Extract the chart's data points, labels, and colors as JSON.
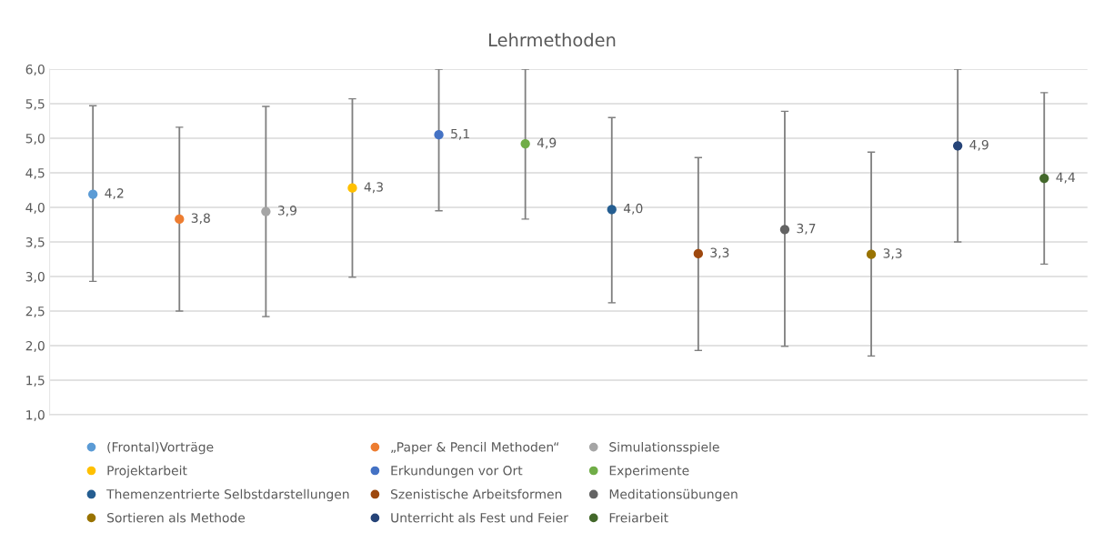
{
  "chart_data": {
    "type": "scatter",
    "title": "Lehrmethoden",
    "categories": [
      null,
      null,
      null,
      null,
      null,
      null,
      null,
      null,
      null,
      null,
      null,
      null
    ],
    "series": [
      {
        "name": "(Frontal)Vorträge",
        "color": "#5b9bd5",
        "values": [
          4.19,
          null,
          null,
          null,
          null,
          null,
          null,
          null,
          null,
          null,
          null,
          null
        ],
        "errors": [
          [
            2.93,
            5.47
          ],
          null,
          null,
          null,
          null,
          null,
          null,
          null,
          null,
          null,
          null,
          null
        ],
        "value_labels": [
          "4,2",
          null,
          null,
          null,
          null,
          null,
          null,
          null,
          null,
          null,
          null,
          null
        ]
      },
      {
        "name": "„Paper & Pencil Methoden“",
        "color": "#ed7d31",
        "values": [
          null,
          3.83,
          null,
          null,
          null,
          null,
          null,
          null,
          null,
          null,
          null,
          null
        ],
        "errors": [
          null,
          [
            2.5,
            5.16
          ],
          null,
          null,
          null,
          null,
          null,
          null,
          null,
          null,
          null,
          null
        ],
        "value_labels": [
          null,
          "3,8",
          null,
          null,
          null,
          null,
          null,
          null,
          null,
          null,
          null,
          null
        ]
      },
      {
        "name": "Simulationsspiele",
        "color": "#a5a5a5",
        "values": [
          null,
          null,
          3.94,
          null,
          null,
          null,
          null,
          null,
          null,
          null,
          null,
          null
        ],
        "errors": [
          null,
          null,
          [
            2.42,
            5.46
          ],
          null,
          null,
          null,
          null,
          null,
          null,
          null,
          null,
          null
        ],
        "value_labels": [
          null,
          null,
          "3,9",
          null,
          null,
          null,
          null,
          null,
          null,
          null,
          null,
          null
        ]
      },
      {
        "name": "Projektarbeit",
        "color": "#ffc000",
        "values": [
          null,
          null,
          null,
          4.28,
          null,
          null,
          null,
          null,
          null,
          null,
          null,
          null
        ],
        "errors": [
          null,
          null,
          null,
          [
            2.99,
            5.57
          ],
          null,
          null,
          null,
          null,
          null,
          null,
          null,
          null
        ],
        "value_labels": [
          null,
          null,
          null,
          "4,3",
          null,
          null,
          null,
          null,
          null,
          null,
          null,
          null
        ]
      },
      {
        "name": "Erkundungen vor Ort",
        "color": "#4472c4",
        "values": [
          null,
          null,
          null,
          null,
          5.05,
          null,
          null,
          null,
          null,
          null,
          null,
          null
        ],
        "errors": [
          null,
          null,
          null,
          null,
          [
            3.95,
            6.0
          ],
          null,
          null,
          null,
          null,
          null,
          null,
          null
        ],
        "value_labels": [
          null,
          null,
          null,
          null,
          "5,1",
          null,
          null,
          null,
          null,
          null,
          null,
          null
        ]
      },
      {
        "name": "Experimente",
        "color": "#70ad47",
        "values": [
          null,
          null,
          null,
          null,
          null,
          4.92,
          null,
          null,
          null,
          null,
          null,
          null
        ],
        "errors": [
          null,
          null,
          null,
          null,
          null,
          [
            3.83,
            6.0
          ],
          null,
          null,
          null,
          null,
          null,
          null
        ],
        "value_labels": [
          null,
          null,
          null,
          null,
          null,
          "4,9",
          null,
          null,
          null,
          null,
          null,
          null
        ]
      },
      {
        "name": "Themenzentrierte Selbstdarstellungen",
        "color": "#255e91",
        "values": [
          null,
          null,
          null,
          null,
          null,
          null,
          3.97,
          null,
          null,
          null,
          null,
          null
        ],
        "errors": [
          null,
          null,
          null,
          null,
          null,
          null,
          [
            2.62,
            5.3
          ],
          null,
          null,
          null,
          null,
          null
        ],
        "value_labels": [
          null,
          null,
          null,
          null,
          null,
          null,
          "4,0",
          null,
          null,
          null,
          null,
          null
        ]
      },
      {
        "name": "Szenistische Arbeitsformen",
        "color": "#9e480e",
        "values": [
          null,
          null,
          null,
          null,
          null,
          null,
          null,
          3.33,
          null,
          null,
          null,
          null
        ],
        "errors": [
          null,
          null,
          null,
          null,
          null,
          null,
          null,
          [
            1.93,
            4.72
          ],
          null,
          null,
          null,
          null
        ],
        "value_labels": [
          null,
          null,
          null,
          null,
          null,
          null,
          null,
          "3,3",
          null,
          null,
          null,
          null
        ]
      },
      {
        "name": "Meditationsübungen",
        "color": "#636363",
        "values": [
          null,
          null,
          null,
          null,
          null,
          null,
          null,
          null,
          3.68,
          null,
          null,
          null
        ],
        "errors": [
          null,
          null,
          null,
          null,
          null,
          null,
          null,
          null,
          [
            1.99,
            5.39
          ],
          null,
          null,
          null
        ],
        "value_labels": [
          null,
          null,
          null,
          null,
          null,
          null,
          null,
          null,
          "3,7",
          null,
          null,
          null
        ]
      },
      {
        "name": "Sortieren als Methode",
        "color": "#997300",
        "values": [
          null,
          null,
          null,
          null,
          null,
          null,
          null,
          null,
          null,
          3.32,
          null,
          null
        ],
        "errors": [
          null,
          null,
          null,
          null,
          null,
          null,
          null,
          null,
          null,
          [
            1.85,
            4.8
          ],
          null,
          null
        ],
        "value_labels": [
          null,
          null,
          null,
          null,
          null,
          null,
          null,
          null,
          null,
          "3,3",
          null,
          null
        ]
      },
      {
        "name": "Unterricht als Fest und Feier",
        "color": "#264478",
        "values": [
          null,
          null,
          null,
          null,
          null,
          null,
          null,
          null,
          null,
          null,
          4.89,
          null
        ],
        "errors": [
          null,
          null,
          null,
          null,
          null,
          null,
          null,
          null,
          null,
          null,
          [
            3.5,
            6.0
          ],
          null
        ],
        "value_labels": [
          null,
          null,
          null,
          null,
          null,
          null,
          null,
          null,
          null,
          null,
          "4,9",
          null
        ]
      },
      {
        "name": "Freiarbeit",
        "color": "#43682b",
        "values": [
          null,
          null,
          null,
          null,
          null,
          null,
          null,
          null,
          null,
          null,
          null,
          4.42
        ],
        "errors": [
          null,
          null,
          null,
          null,
          null,
          null,
          null,
          null,
          null,
          null,
          null,
          [
            3.18,
            5.66
          ]
        ],
        "value_labels": [
          null,
          null,
          null,
          null,
          null,
          null,
          null,
          null,
          null,
          null,
          null,
          "4,4"
        ]
      }
    ],
    "ylim": [
      1.0,
      6.0
    ],
    "yticks": [
      {
        "value": 1.0,
        "label": "1,0"
      },
      {
        "value": 1.5,
        "label": "1,5"
      },
      {
        "value": 2.0,
        "label": "2,0"
      },
      {
        "value": 2.5,
        "label": "2,5"
      },
      {
        "value": 3.0,
        "label": "3,0"
      },
      {
        "value": 3.5,
        "label": "3,5"
      },
      {
        "value": 4.0,
        "label": "4,0"
      },
      {
        "value": 4.5,
        "label": "4,5"
      },
      {
        "value": 5.0,
        "label": "5,0"
      },
      {
        "value": 5.5,
        "label": "5,5"
      },
      {
        "value": 6.0,
        "label": "6,0"
      }
    ],
    "grid": "y",
    "legend": "bottom",
    "tick_labels": "y",
    "marker": "circle"
  }
}
